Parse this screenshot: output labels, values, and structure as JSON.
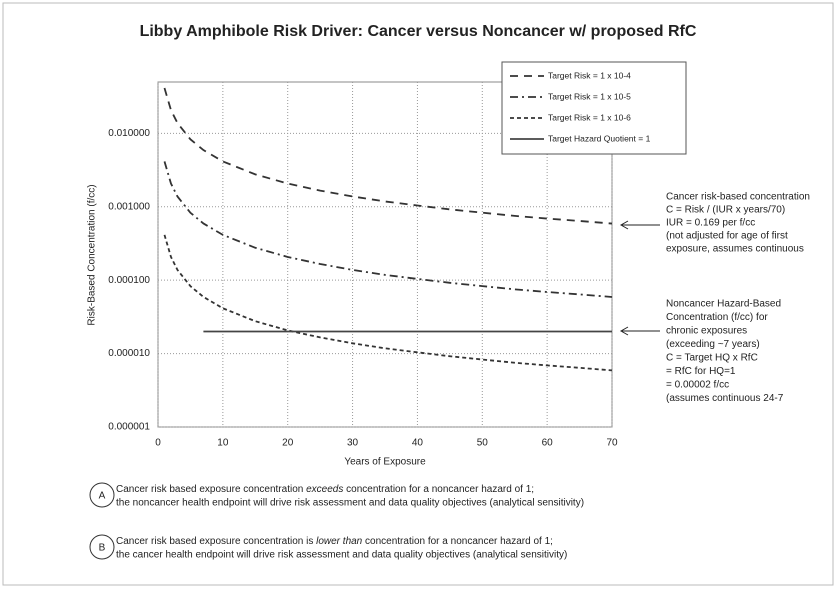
{
  "chart_data": {
    "type": "line",
    "title": "Libby Amphibole Risk Driver: Cancer versus Noncancer w/ proposed RfC",
    "x_label": "Years of Exposure",
    "y_label": "Risk-Based Concentration (f/cc)",
    "log_y": true,
    "grid": true,
    "legend": "upper right",
    "x": [
      1,
      2,
      3,
      5,
      7,
      10,
      15,
      20,
      25,
      30,
      35,
      40,
      45,
      50,
      55,
      60,
      65,
      70
    ],
    "series": [
      {
        "name": "Target Risk = 1 x 10-4",
        "color": "#333333",
        "dash": "8,6",
        "values": [
          0.0414,
          0.0207,
          0.0138,
          0.00828,
          0.00592,
          0.00414,
          0.00276,
          0.00207,
          0.00166,
          0.00138,
          0.00118,
          0.00104,
          0.00092,
          0.00083,
          0.00075,
          0.00069,
          0.00064,
          0.00059
        ]
      },
      {
        "name": "Target Risk = 1 x 10-5",
        "color": "#333333",
        "dash": "8,4,2,4",
        "values": [
          0.00414,
          0.00207,
          0.00138,
          0.000828,
          0.000592,
          0.000414,
          0.000276,
          0.000207,
          0.000166,
          0.000138,
          0.000118,
          0.000104,
          9.2e-05,
          8.3e-05,
          7.5e-05,
          6.9e-05,
          6.4e-05,
          5.9e-05
        ]
      },
      {
        "name": "Target Risk = 1 x 10-6",
        "color": "#333333",
        "dash": "4,3",
        "values": [
          0.000414,
          0.000207,
          0.000138,
          8.28e-05,
          5.92e-05,
          4.14e-05,
          2.76e-05,
          2.07e-05,
          1.66e-05,
          1.38e-05,
          1.18e-05,
          1.04e-05,
          9.2e-06,
          8.3e-06,
          7.5e-06,
          6.9e-06,
          6.4e-06,
          5.9e-06
        ]
      },
      {
        "name": "Target Hazard Quotient = 1",
        "color": "#444444",
        "dash": "none",
        "values": [
          null,
          null,
          null,
          null,
          2e-05,
          2e-05,
          2e-05,
          2e-05,
          2e-05,
          2e-05,
          2e-05,
          2e-05,
          2e-05,
          2e-05,
          2e-05,
          2e-05,
          2e-05,
          2e-05
        ]
      }
    ],
    "xlim": [
      0,
      70
    ],
    "xticks": [
      0,
      10,
      20,
      30,
      40,
      50,
      60,
      70
    ],
    "ylim": [
      1e-06,
      0.05
    ],
    "yticks": [
      {
        "value": 1e-06,
        "label": "0.000001"
      },
      {
        "value": 1e-05,
        "label": "0.000010"
      },
      {
        "value": 0.0001,
        "label": "0.000100"
      },
      {
        "value": 0.001,
        "label": "0.001000"
      },
      {
        "value": 0.01,
        "label": "0.010000"
      }
    ],
    "markers": [
      "A",
      "A",
      "A",
      "B"
    ],
    "cancer_note": [
      "Cancer risk-based concentration",
      "C = Risk / (IUR x years/70)",
      "IUR = 0.169 per f/cc",
      "(not adjusted for age of first",
      "exposure, assumes continuous"
    ],
    "noncancer_note": [
      "Noncancer Hazard-Based",
      "Concentration (f/cc) for",
      "chronic exposures",
      "(exceeding ~7 years)",
      "C = Target HQ x RfC",
      "= RfC for HQ=1",
      "= 0.00002 f/cc",
      "(assumes continuous 24-7"
    ],
    "footnotes": [
      {
        "marker": "A",
        "line1": [
          "Cancer risk based exposure concentration ",
          "exceeds",
          " concentration for a noncancer hazard of 1;"
        ],
        "line2": "the noncancer health endpoint will drive risk assessment and data quality objectives (analytical sensitivity)"
      },
      {
        "marker": "B",
        "line1": [
          "Cancer risk based exposure concentration is ",
          "lower than",
          " concentration for a noncancer hazard of 1;"
        ],
        "line2": "the cancer health endpoint will drive risk assessment and data quality objectives (analytical sensitivity)"
      }
    ]
  }
}
